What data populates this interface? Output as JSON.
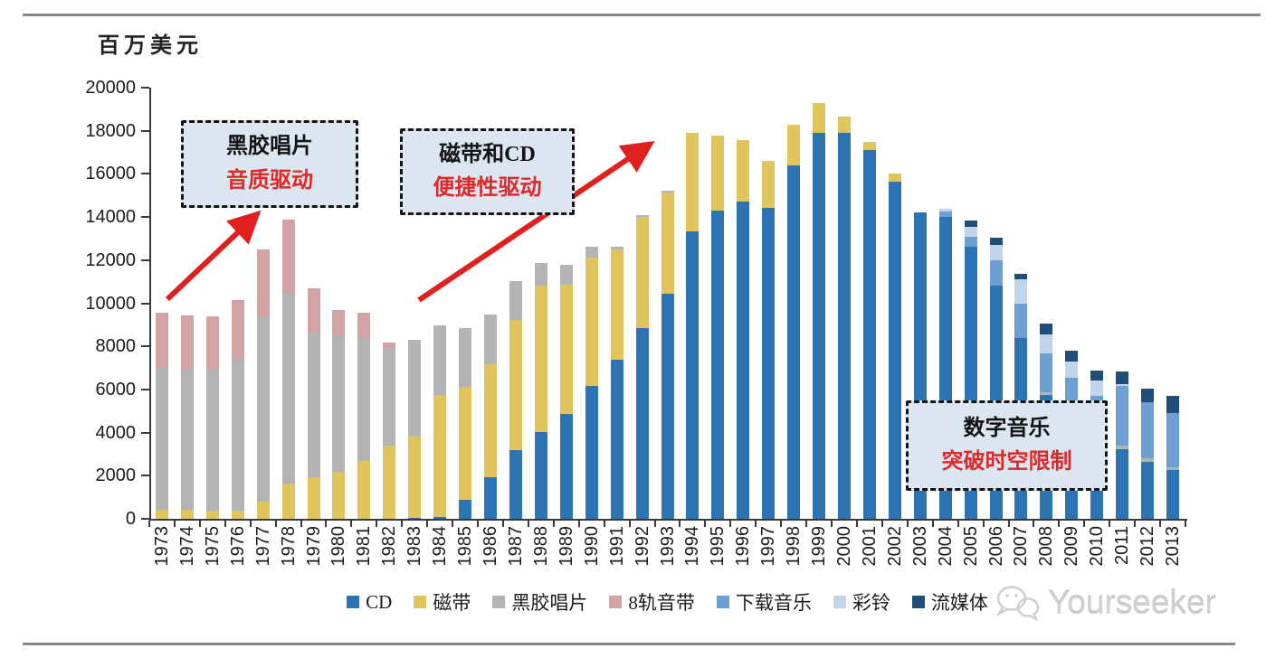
{
  "page": {
    "unit_label": "百万美元",
    "watermark": "Yourseeker"
  },
  "annotations": [
    {
      "id": "vinyl-era",
      "line1": "黑胶唱片",
      "line2": "音质驱动"
    },
    {
      "id": "tape-cd-era",
      "line1": "磁带和CD",
      "line2": "便捷性驱动"
    },
    {
      "id": "digital-era",
      "line1": "数字音乐",
      "line2": "突破时空限制"
    }
  ],
  "colors": {
    "accent_red": "#e01f1f",
    "callout_bg": "#dce6f1",
    "rule_gray": "#878787",
    "watermark_gray": "#cfcfcf"
  },
  "chart_data": {
    "type": "bar",
    "stacked": true,
    "title": "",
    "xlabel": "",
    "ylabel": "百万美元",
    "ylim": [
      0,
      20000
    ],
    "y_ticks": [
      0,
      2000,
      4000,
      6000,
      8000,
      10000,
      12000,
      14000,
      16000,
      18000,
      20000
    ],
    "grid": false,
    "legend_position": "bottom",
    "categories": [
      1973,
      1974,
      1975,
      1976,
      1977,
      1978,
      1979,
      1980,
      1981,
      1982,
      1983,
      1984,
      1985,
      1986,
      1987,
      1988,
      1989,
      1990,
      1991,
      1992,
      1993,
      1994,
      1995,
      1996,
      1997,
      1998,
      1999,
      2000,
      2001,
      2002,
      2003,
      2004,
      2005,
      2006,
      2007,
      2008,
      2009,
      2010,
      2011,
      2012,
      2013
    ],
    "series": [
      {
        "name": "CD",
        "color": "#2d74b5",
        "values": [
          0,
          0,
          0,
          0,
          0,
          0,
          0,
          0,
          0,
          0,
          30,
          100,
          870,
          1940,
          3170,
          4040,
          4850,
          6180,
          7400,
          8830,
          10440,
          13330,
          14310,
          14730,
          14420,
          16380,
          17920,
          17890,
          17100,
          15650,
          14200,
          14000,
          12610,
          10820,
          8370,
          5750,
          5000,
          4000,
          3250,
          2650,
          2250
        ]
      },
      {
        "name": "磁带",
        "color": "#e0c55e",
        "values": [
          410,
          400,
          390,
          360,
          800,
          1640,
          1920,
          2200,
          2680,
          3380,
          3800,
          5630,
          5270,
          5210,
          6040,
          6780,
          6010,
          5940,
          5100,
          5190,
          4700,
          4570,
          3460,
          2820,
          2180,
          1920,
          1380,
          760,
          400,
          350,
          0,
          0,
          0,
          0,
          0,
          0,
          0,
          0,
          0,
          0,
          0
        ]
      },
      {
        "name": "黑胶唱片",
        "color": "#b3b3b3",
        "values": [
          6600,
          6510,
          6560,
          7070,
          8600,
          8830,
          6730,
          6310,
          5730,
          4570,
          4470,
          3240,
          2720,
          2310,
          1800,
          1050,
          910,
          510,
          130,
          80,
          80,
          0,
          0,
          0,
          0,
          0,
          0,
          0,
          0,
          0,
          0,
          0,
          0,
          0,
          0,
          140,
          140,
          100,
          150,
          150,
          150
        ]
      },
      {
        "name": "8轨音带",
        "color": "#d2a3a2",
        "values": [
          2560,
          2520,
          2450,
          2730,
          3100,
          3420,
          2030,
          1160,
          1150,
          210,
          0,
          0,
          0,
          0,
          0,
          0,
          0,
          0,
          0,
          0,
          0,
          0,
          0,
          0,
          0,
          0,
          0,
          0,
          0,
          0,
          0,
          0,
          0,
          0,
          0,
          0,
          0,
          0,
          0,
          0,
          0
        ]
      },
      {
        "name": "下载音乐",
        "color": "#6d9fd3",
        "values": [
          0,
          0,
          0,
          0,
          0,
          0,
          0,
          0,
          0,
          0,
          0,
          0,
          0,
          0,
          0,
          0,
          0,
          0,
          0,
          0,
          0,
          0,
          0,
          0,
          0,
          0,
          0,
          0,
          0,
          0,
          0,
          250,
          490,
          1160,
          1610,
          1800,
          1400,
          1600,
          2750,
          2600,
          2500
        ]
      },
      {
        "name": "彩铃",
        "color": "#c2d4ea",
        "values": [
          0,
          0,
          0,
          0,
          0,
          0,
          0,
          0,
          0,
          0,
          0,
          0,
          0,
          0,
          0,
          0,
          0,
          0,
          0,
          0,
          0,
          0,
          0,
          0,
          0,
          0,
          0,
          0,
          0,
          0,
          0,
          150,
          460,
          740,
          1120,
          860,
          770,
          700,
          100,
          0,
          0
        ]
      },
      {
        "name": "流媒体",
        "color": "#1f4e79",
        "values": [
          0,
          0,
          0,
          0,
          0,
          0,
          0,
          0,
          0,
          0,
          0,
          0,
          0,
          0,
          0,
          0,
          0,
          0,
          0,
          0,
          0,
          0,
          0,
          0,
          0,
          0,
          0,
          0,
          0,
          0,
          0,
          0,
          270,
          310,
          280,
          490,
          490,
          480,
          600,
          630,
          820
        ]
      }
    ]
  }
}
